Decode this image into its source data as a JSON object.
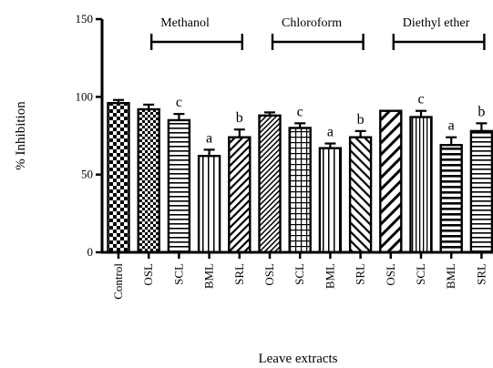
{
  "chart_data": {
    "type": "bar",
    "xlabel": "Leave extracts",
    "ylabel": "% Inhibition",
    "ylim": [
      0,
      150
    ],
    "yticks": [
      0,
      50,
      100,
      150
    ],
    "grid": false,
    "categories": [
      "Control",
      "OSL",
      "SCL",
      "BML",
      "SRL",
      "OSL",
      "SCL",
      "BML",
      "SRL",
      "OSL",
      "SCL",
      "BML",
      "SRL"
    ],
    "values": [
      96,
      92,
      85,
      62,
      74,
      88,
      80,
      67,
      74,
      91,
      87,
      69,
      78
    ],
    "errors": [
      2,
      3,
      4,
      4,
      5,
      2,
      3,
      3,
      4,
      0,
      4,
      5,
      5
    ],
    "annotations": [
      "",
      "",
      "c",
      "a",
      "b",
      "",
      "c",
      "a",
      "b",
      "",
      "c",
      "a",
      "b"
    ],
    "patterns": [
      "checker",
      "dense-checker",
      "horizontal",
      "vertical",
      "diagonal-ne",
      "diagonal-fine",
      "grid",
      "vertical",
      "diagonal-nw",
      "diagonal-ne-bold",
      "vertical-thin",
      "horizontal-bold",
      "horizontal"
    ],
    "groups": [
      {
        "label": "Methanol",
        "from": 1,
        "to": 4
      },
      {
        "label": "Chloroform",
        "from": 5,
        "to": 8
      },
      {
        "label": "Diethyl ether",
        "from": 9,
        "to": 12
      }
    ]
  }
}
